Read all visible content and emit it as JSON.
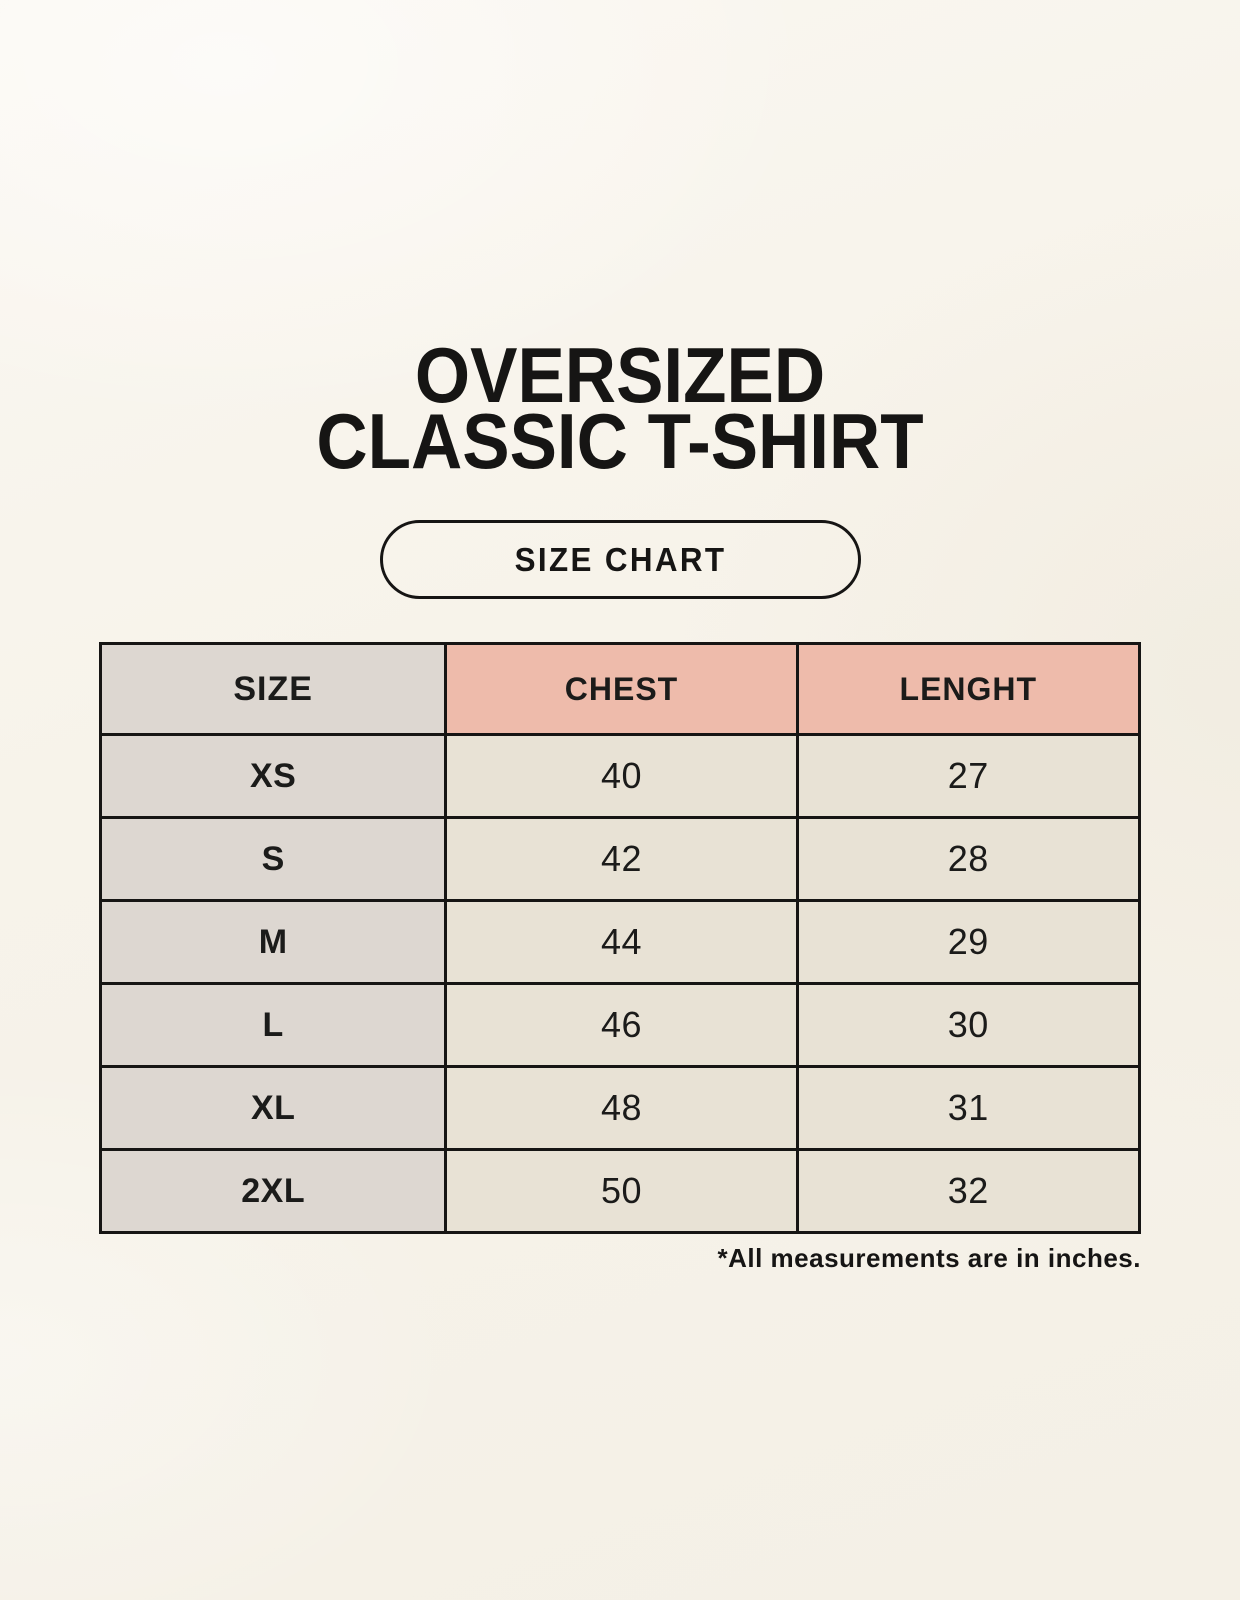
{
  "title": {
    "line1": "OVERSIZED",
    "line2": "CLASSIC T-SHIRT"
  },
  "size_chart_button": {
    "label": "SIZE CHART"
  },
  "chart_data": {
    "type": "table",
    "title": "OVERSIZED CLASSIC T-SHIRT — SIZE CHART",
    "columns": [
      "SIZE",
      "CHEST",
      "LENGHT"
    ],
    "rows": [
      [
        "XS",
        "40",
        "27"
      ],
      [
        "S",
        "42",
        "28"
      ],
      [
        "M",
        "44",
        "29"
      ],
      [
        "L",
        "46",
        "30"
      ],
      [
        "XL",
        "48",
        "31"
      ],
      [
        "2XL",
        "50",
        "32"
      ]
    ],
    "units": "inches"
  },
  "footnote": "*All measurements are in inches.",
  "colors": {
    "background": "#f7f3ea",
    "header_accent": "#eebbab",
    "size_column": "#ddd7d1",
    "data_cell": "#e8e2d5",
    "border": "#161514",
    "text": "#1b1b1a"
  }
}
